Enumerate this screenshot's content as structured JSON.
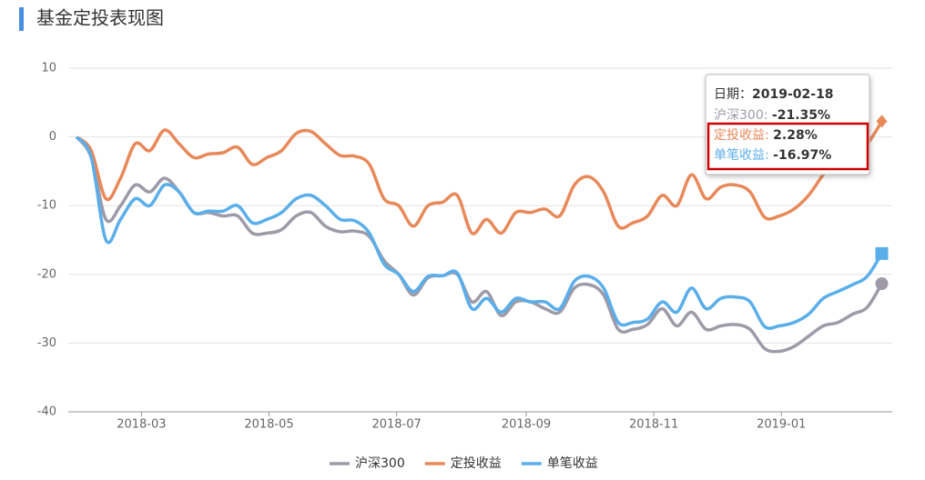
{
  "title": "基金定投表现图",
  "chart_data": {
    "type": "line",
    "x": [
      "2018-01-29",
      "2018-02-05",
      "2018-02-12",
      "2018-02-19",
      "2018-02-26",
      "2018-03-05",
      "2018-03-12",
      "2018-03-19",
      "2018-03-26",
      "2018-04-02",
      "2018-04-09",
      "2018-04-16",
      "2018-04-23",
      "2018-04-30",
      "2018-05-07",
      "2018-05-14",
      "2018-05-21",
      "2018-05-28",
      "2018-06-04",
      "2018-06-11",
      "2018-06-18",
      "2018-06-25",
      "2018-07-02",
      "2018-07-09",
      "2018-07-16",
      "2018-07-23",
      "2018-07-30",
      "2018-08-06",
      "2018-08-13",
      "2018-08-20",
      "2018-08-27",
      "2018-09-03",
      "2018-09-10",
      "2018-09-17",
      "2018-09-24",
      "2018-10-01",
      "2018-10-08",
      "2018-10-15",
      "2018-10-22",
      "2018-10-29",
      "2018-11-05",
      "2018-11-12",
      "2018-11-19",
      "2018-11-26",
      "2018-12-03",
      "2018-12-10",
      "2018-12-17",
      "2018-12-24",
      "2018-12-31",
      "2019-01-07",
      "2019-01-14",
      "2019-01-21",
      "2019-01-28",
      "2019-02-04",
      "2019-02-11",
      "2019-02-18"
    ],
    "series": [
      {
        "name": "沪深300",
        "color": "#9e9aa8",
        "marker": "circle",
        "values": [
          0,
          -3,
          -12,
          -10,
          -7,
          -8,
          -6,
          -8,
          -11,
          -11,
          -11.5,
          -11.5,
          -14,
          -14,
          -13.5,
          -11.5,
          -11,
          -13,
          -13.8,
          -13.7,
          -14.5,
          -18,
          -20,
          -23,
          -20.5,
          -20.2,
          -20,
          -24,
          -22.5,
          -26,
          -24,
          -24,
          -25,
          -25.5,
          -22,
          -21.5,
          -23,
          -28,
          -28,
          -27.3,
          -25,
          -27.5,
          -25.5,
          -28,
          -27.5,
          -27.3,
          -28,
          -30.8,
          -31.2,
          -30.5,
          -29,
          -27.5,
          -27,
          -25.8,
          -24.8,
          -21.35
        ]
      },
      {
        "name": "定投收益",
        "color": "#e8895a",
        "marker": "diamond",
        "values": [
          0,
          -2,
          -9,
          -6,
          -1,
          -2,
          1,
          -1,
          -3,
          -2.5,
          -2.3,
          -1.5,
          -4,
          -3,
          -2,
          0.5,
          0.8,
          -1,
          -2.7,
          -2.8,
          -4,
          -9,
          -10,
          -13,
          -10,
          -9.5,
          -8.5,
          -14,
          -12,
          -14,
          -11,
          -11,
          -10.5,
          -11.5,
          -7,
          -5.8,
          -8,
          -13,
          -12.5,
          -11.5,
          -8.5,
          -10,
          -5.5,
          -9,
          -7.3,
          -7,
          -8,
          -11.7,
          -11.5,
          -10.5,
          -8.5,
          -5.5,
          -3,
          -2,
          -1,
          2.28
        ]
      },
      {
        "name": "单笔收益",
        "color": "#5aaeea",
        "marker": "square",
        "values": [
          0,
          -3,
          -15,
          -12,
          -9,
          -10,
          -7,
          -8,
          -11,
          -10.8,
          -10.8,
          -10,
          -12.5,
          -12,
          -11,
          -9,
          -8.5,
          -10,
          -12,
          -12.2,
          -14,
          -18.5,
          -20,
          -22.5,
          -20.3,
          -20.2,
          -19.8,
          -25,
          -23.5,
          -25.5,
          -23.5,
          -24,
          -24,
          -25,
          -21,
          -20.3,
          -22,
          -27,
          -27,
          -26.5,
          -24,
          -25.5,
          -22,
          -25,
          -23.5,
          -23.3,
          -24,
          -27.6,
          -27.5,
          -27,
          -25.8,
          -23.5,
          -22.5,
          -21.5,
          -20.3,
          -16.97
        ]
      }
    ],
    "xlim": [
      "2018-01-25",
      "2019-02-23"
    ],
    "xticks": [
      {
        "value": "2018-03-01",
        "label": "2018-03"
      },
      {
        "value": "2018-05-01",
        "label": "2018-05"
      },
      {
        "value": "2018-07-01",
        "label": "2018-07"
      },
      {
        "value": "2018-09-01",
        "label": "2018-09"
      },
      {
        "value": "2018-11-01",
        "label": "2018-11"
      },
      {
        "value": "2019-01-01",
        "label": "2019-01"
      }
    ],
    "ylim": [
      -40,
      10
    ],
    "yticks": [
      -40,
      -30,
      -20,
      -10,
      0,
      10
    ],
    "grid": true,
    "legend": "bottom",
    "tooltip": {
      "date_label": "日期：",
      "separator": ": ",
      "value_labels": [
        "-21.35%",
        "2.28%",
        "-16.97%"
      ]
    }
  }
}
